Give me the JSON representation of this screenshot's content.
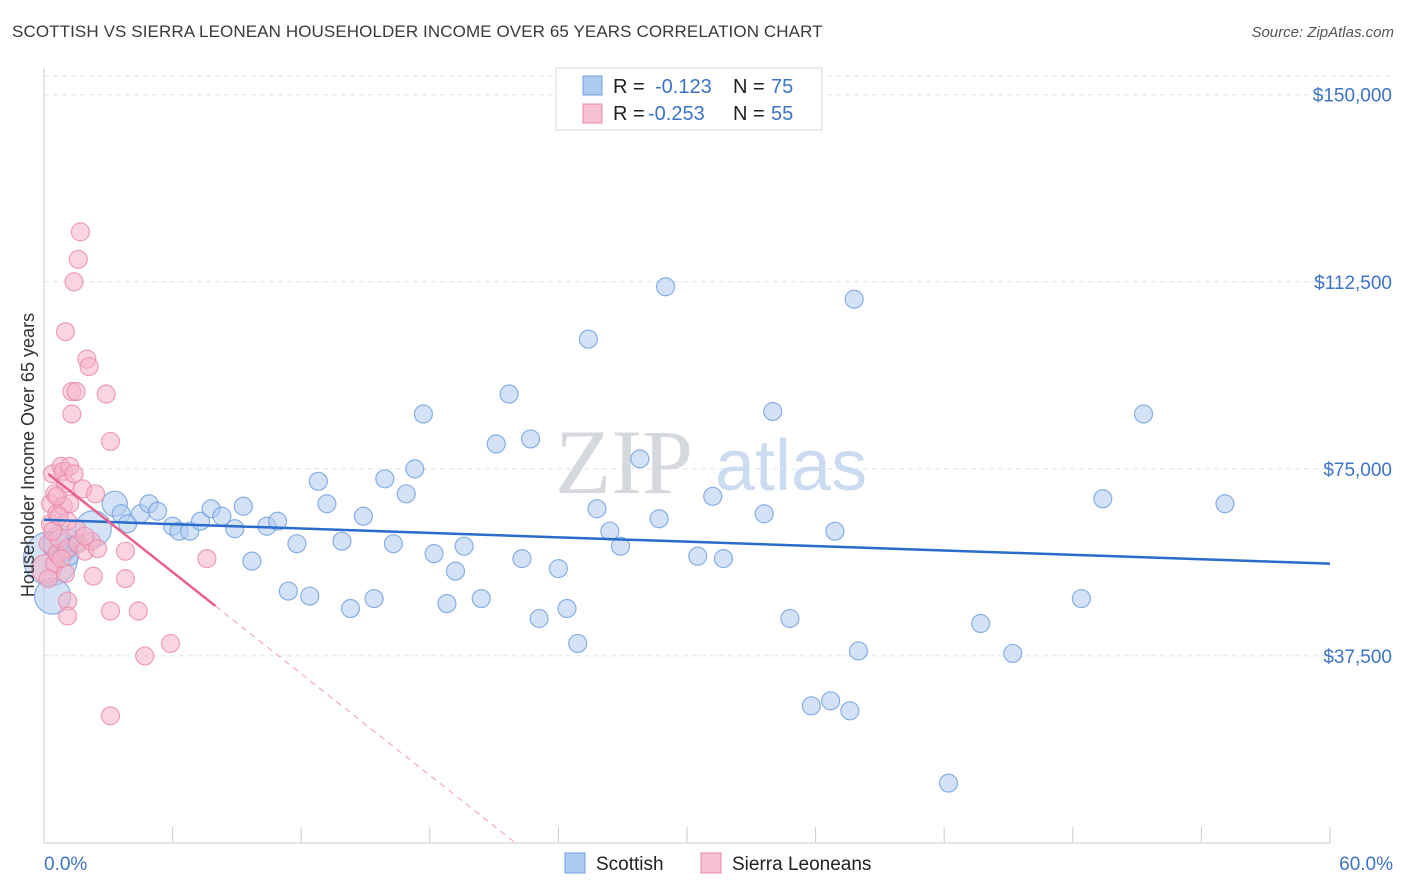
{
  "title": "SCOTTISH VS SIERRA LEONEAN HOUSEHOLDER INCOME OVER 65 YEARS CORRELATION CHART",
  "source": "Source: ZipAtlas.com",
  "colors": {
    "blue": "#3d74c6",
    "blue_fill": "#aecbf0",
    "blue_line": "#2a6ccc",
    "pink": "#e8608d",
    "pink_fill": "#f6b3c8",
    "grid": "#dde3ea"
  },
  "legend": {
    "rows": [
      {
        "r_label": "R =",
        "r_value": "-0.123",
        "n_label": "N =",
        "n_value": "75"
      },
      {
        "r_label": "R =",
        "r_value": "-0.253",
        "n_label": "N =",
        "n_value": "55"
      }
    ]
  },
  "bottom_legend": [
    "Scottish",
    "Sierra Leoneans"
  ],
  "chart_data": {
    "type": "scatter",
    "title": "SCOTTISH VS SIERRA LEONEAN HOUSEHOLDER INCOME OVER 65 YEARS CORRELATION CHART",
    "xlabel": "",
    "ylabel": "Householder Income Over 65 years",
    "xlim": [
      0,
      60
    ],
    "ylim": [
      0,
      153750
    ],
    "x_tick_labels": [
      "0.0%",
      "60.0%"
    ],
    "y_ticks": [
      37500,
      75000,
      112500,
      150000
    ],
    "y_tick_labels": [
      "$37,500",
      "$75,000",
      "$112,500",
      "$150,000"
    ],
    "grid": true,
    "watermark": "ZIPatlas",
    "series": [
      {
        "name": "Scottish",
        "r": -0.123,
        "n": 75,
        "trend": {
          "x": [
            0,
            60
          ],
          "y": [
            64800,
            56000
          ],
          "style": "solid"
        },
        "points": [
          {
            "x": 0.3,
            "y": 57000,
            "s": 3
          },
          {
            "x": 0.4,
            "y": 49500,
            "s": 2
          },
          {
            "x": 0.8,
            "y": 60000,
            "s": 2
          },
          {
            "x": 1.0,
            "y": 58500,
            "s": 1
          },
          {
            "x": 1.2,
            "y": 57500,
            "s": 1
          },
          {
            "x": 1.5,
            "y": 60000,
            "s": 1
          },
          {
            "x": 2.3,
            "y": 63000,
            "s": 2
          },
          {
            "x": 3.3,
            "y": 68000,
            "s": 1.4
          },
          {
            "x": 3.6,
            "y": 66000,
            "s": 1
          },
          {
            "x": 3.9,
            "y": 64000,
            "s": 1
          },
          {
            "x": 4.5,
            "y": 66000,
            "s": 1
          },
          {
            "x": 4.9,
            "y": 68000,
            "s": 1
          },
          {
            "x": 5.3,
            "y": 66500,
            "s": 1
          },
          {
            "x": 6.0,
            "y": 63500,
            "s": 1
          },
          {
            "x": 6.3,
            "y": 62500,
            "s": 1
          },
          {
            "x": 6.8,
            "y": 62500,
            "s": 1
          },
          {
            "x": 7.3,
            "y": 64500,
            "s": 1
          },
          {
            "x": 7.8,
            "y": 67000,
            "s": 1
          },
          {
            "x": 8.3,
            "y": 65500,
            "s": 1
          },
          {
            "x": 8.9,
            "y": 63000,
            "s": 1
          },
          {
            "x": 9.3,
            "y": 67500,
            "s": 1
          },
          {
            "x": 9.7,
            "y": 56500,
            "s": 1
          },
          {
            "x": 10.4,
            "y": 63500,
            "s": 1
          },
          {
            "x": 10.9,
            "y": 64500,
            "s": 1
          },
          {
            "x": 11.4,
            "y": 50500,
            "s": 1
          },
          {
            "x": 11.8,
            "y": 60000,
            "s": 1
          },
          {
            "x": 12.4,
            "y": 49500,
            "s": 1
          },
          {
            "x": 12.8,
            "y": 72500,
            "s": 1
          },
          {
            "x": 13.2,
            "y": 68000,
            "s": 1
          },
          {
            "x": 13.9,
            "y": 60500,
            "s": 1
          },
          {
            "x": 14.3,
            "y": 47000,
            "s": 1
          },
          {
            "x": 14.9,
            "y": 65500,
            "s": 1
          },
          {
            "x": 15.4,
            "y": 49000,
            "s": 1
          },
          {
            "x": 15.9,
            "y": 73000,
            "s": 1
          },
          {
            "x": 16.3,
            "y": 60000,
            "s": 1
          },
          {
            "x": 16.9,
            "y": 70000,
            "s": 1
          },
          {
            "x": 17.3,
            "y": 75000,
            "s": 1
          },
          {
            "x": 17.7,
            "y": 86000,
            "s": 1
          },
          {
            "x": 18.2,
            "y": 58000,
            "s": 1
          },
          {
            "x": 18.8,
            "y": 48000,
            "s": 1
          },
          {
            "x": 19.2,
            "y": 54500,
            "s": 1
          },
          {
            "x": 19.6,
            "y": 59500,
            "s": 1
          },
          {
            "x": 20.4,
            "y": 49000,
            "s": 1
          },
          {
            "x": 21.1,
            "y": 80000,
            "s": 1
          },
          {
            "x": 21.7,
            "y": 90000,
            "s": 1
          },
          {
            "x": 22.3,
            "y": 57000,
            "s": 1
          },
          {
            "x": 22.7,
            "y": 81000,
            "s": 1
          },
          {
            "x": 23.1,
            "y": 45000,
            "s": 1
          },
          {
            "x": 24.0,
            "y": 55000,
            "s": 1
          },
          {
            "x": 24.4,
            "y": 47000,
            "s": 1
          },
          {
            "x": 24.9,
            "y": 40000,
            "s": 1
          },
          {
            "x": 25.4,
            "y": 101000,
            "s": 1
          },
          {
            "x": 25.8,
            "y": 67000,
            "s": 1
          },
          {
            "x": 26.4,
            "y": 62500,
            "s": 1
          },
          {
            "x": 26.9,
            "y": 59500,
            "s": 1
          },
          {
            "x": 27.8,
            "y": 77000,
            "s": 1
          },
          {
            "x": 28.7,
            "y": 65000,
            "s": 1
          },
          {
            "x": 29.0,
            "y": 111500,
            "s": 1
          },
          {
            "x": 30.5,
            "y": 57500,
            "s": 1
          },
          {
            "x": 31.2,
            "y": 69500,
            "s": 1
          },
          {
            "x": 31.7,
            "y": 57000,
            "s": 1
          },
          {
            "x": 33.6,
            "y": 66000,
            "s": 1
          },
          {
            "x": 34.0,
            "y": 86500,
            "s": 1
          },
          {
            "x": 34.8,
            "y": 45000,
            "s": 1
          },
          {
            "x": 35.8,
            "y": 27500,
            "s": 1
          },
          {
            "x": 36.7,
            "y": 28500,
            "s": 1
          },
          {
            "x": 36.9,
            "y": 62500,
            "s": 1
          },
          {
            "x": 37.6,
            "y": 26500,
            "s": 1
          },
          {
            "x": 38.0,
            "y": 38500,
            "s": 1
          },
          {
            "x": 37.8,
            "y": 109000,
            "s": 1
          },
          {
            "x": 42.2,
            "y": 12000,
            "s": 1
          },
          {
            "x": 43.7,
            "y": 44000,
            "s": 1
          },
          {
            "x": 45.2,
            "y": 38000,
            "s": 1
          },
          {
            "x": 48.4,
            "y": 49000,
            "s": 1
          },
          {
            "x": 49.4,
            "y": 69000,
            "s": 1
          },
          {
            "x": 51.3,
            "y": 86000,
            "s": 1
          },
          {
            "x": 55.1,
            "y": 68000,
            "s": 1
          }
        ]
      },
      {
        "name": "Sierra Leoneans",
        "r": -0.253,
        "n": 55,
        "trend": {
          "x": [
            0.2,
            8.0
          ],
          "y": [
            74000,
            47500
          ],
          "style": "solid"
        },
        "trend_extended": {
          "x": [
            8.0,
            22.0
          ],
          "y": [
            47500,
            0
          ],
          "style": "dashed"
        },
        "points": [
          {
            "x": 0.1,
            "y": 55000,
            "s": 1.6
          },
          {
            "x": 0.2,
            "y": 60000,
            "s": 1
          },
          {
            "x": 0.3,
            "y": 64000,
            "s": 1
          },
          {
            "x": 0.3,
            "y": 68000,
            "s": 1
          },
          {
            "x": 0.4,
            "y": 74000,
            "s": 1
          },
          {
            "x": 0.5,
            "y": 70000,
            "s": 1
          },
          {
            "x": 0.5,
            "y": 56000,
            "s": 1
          },
          {
            "x": 0.6,
            "y": 66000,
            "s": 1
          },
          {
            "x": 0.6,
            "y": 58000,
            "s": 1
          },
          {
            "x": 0.7,
            "y": 61000,
            "s": 1
          },
          {
            "x": 0.8,
            "y": 75500,
            "s": 1
          },
          {
            "x": 0.9,
            "y": 74500,
            "s": 1
          },
          {
            "x": 0.9,
            "y": 67500,
            "s": 1
          },
          {
            "x": 1.0,
            "y": 102500,
            "s": 1
          },
          {
            "x": 1.0,
            "y": 72000,
            "s": 1
          },
          {
            "x": 1.0,
            "y": 54000,
            "s": 1
          },
          {
            "x": 1.1,
            "y": 64500,
            "s": 1
          },
          {
            "x": 1.1,
            "y": 59000,
            "s": 1
          },
          {
            "x": 1.1,
            "y": 48500,
            "s": 1
          },
          {
            "x": 1.1,
            "y": 45500,
            "s": 1
          },
          {
            "x": 1.2,
            "y": 75500,
            "s": 1
          },
          {
            "x": 1.2,
            "y": 68000,
            "s": 1
          },
          {
            "x": 1.3,
            "y": 90500,
            "s": 1
          },
          {
            "x": 1.3,
            "y": 86000,
            "s": 1
          },
          {
            "x": 1.4,
            "y": 112500,
            "s": 1
          },
          {
            "x": 1.4,
            "y": 74000,
            "s": 1
          },
          {
            "x": 1.5,
            "y": 90500,
            "s": 1
          },
          {
            "x": 1.6,
            "y": 117000,
            "s": 1
          },
          {
            "x": 1.6,
            "y": 60000,
            "s": 1
          },
          {
            "x": 1.7,
            "y": 122500,
            "s": 1
          },
          {
            "x": 1.8,
            "y": 71000,
            "s": 1
          },
          {
            "x": 1.9,
            "y": 58500,
            "s": 1
          },
          {
            "x": 2.0,
            "y": 97000,
            "s": 1
          },
          {
            "x": 2.1,
            "y": 95500,
            "s": 1
          },
          {
            "x": 2.2,
            "y": 60500,
            "s": 1
          },
          {
            "x": 2.3,
            "y": 53500,
            "s": 1
          },
          {
            "x": 2.5,
            "y": 59000,
            "s": 1
          },
          {
            "x": 2.9,
            "y": 90000,
            "s": 1
          },
          {
            "x": 3.1,
            "y": 80500,
            "s": 1
          },
          {
            "x": 3.1,
            "y": 46500,
            "s": 1
          },
          {
            "x": 3.1,
            "y": 25500,
            "s": 1
          },
          {
            "x": 3.8,
            "y": 58500,
            "s": 1
          },
          {
            "x": 3.8,
            "y": 53000,
            "s": 1
          },
          {
            "x": 4.4,
            "y": 46500,
            "s": 1
          },
          {
            "x": 4.7,
            "y": 37500,
            "s": 1
          },
          {
            "x": 5.9,
            "y": 40000,
            "s": 1
          },
          {
            "x": 7.6,
            "y": 57000,
            "s": 1
          },
          {
            "x": 0.2,
            "y": 53000,
            "s": 1
          },
          {
            "x": 0.4,
            "y": 62500,
            "s": 1
          },
          {
            "x": 0.7,
            "y": 65500,
            "s": 1
          },
          {
            "x": 0.8,
            "y": 57000,
            "s": 1
          },
          {
            "x": 1.5,
            "y": 63000,
            "s": 1
          },
          {
            "x": 1.9,
            "y": 61500,
            "s": 1
          },
          {
            "x": 2.4,
            "y": 70000,
            "s": 1
          },
          {
            "x": 0.6,
            "y": 69500,
            "s": 1
          }
        ]
      }
    ]
  }
}
